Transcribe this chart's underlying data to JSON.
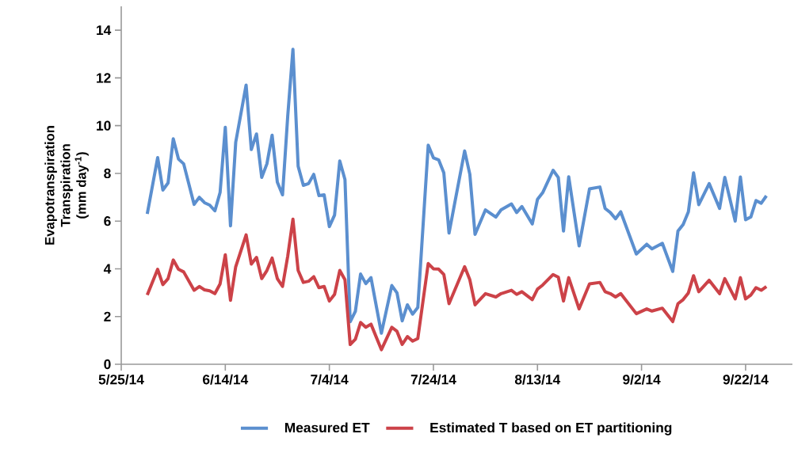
{
  "chart_data": {
    "type": "line",
    "ylabel": "Evapotranspiration\nTranspiration\n(mm day$^{-1}$)",
    "x": [
      "2014-05-30",
      "2014-06-01",
      "2014-06-02",
      "2014-06-03",
      "2014-06-04",
      "2014-06-05",
      "2014-06-06",
      "2014-06-08",
      "2014-06-09",
      "2014-06-10",
      "2014-06-11",
      "2014-06-12",
      "2014-06-13",
      "2014-06-14",
      "2014-06-15",
      "2014-06-16",
      "2014-06-18",
      "2014-06-19",
      "2014-06-20",
      "2014-06-21",
      "2014-06-22",
      "2014-06-23",
      "2014-06-24",
      "2014-06-25",
      "2014-06-26",
      "2014-06-27",
      "2014-06-28",
      "2014-06-29",
      "2014-06-30",
      "2014-07-01",
      "2014-07-02",
      "2014-07-03",
      "2014-07-04",
      "2014-07-05",
      "2014-07-06",
      "2014-07-07",
      "2014-07-08",
      "2014-07-09",
      "2014-07-10",
      "2014-07-11",
      "2014-07-12",
      "2014-07-14",
      "2014-07-16",
      "2014-07-17",
      "2014-07-18",
      "2014-07-19",
      "2014-07-20",
      "2014-07-21",
      "2014-07-23",
      "2014-07-24",
      "2014-07-25",
      "2014-07-26",
      "2014-07-27",
      "2014-07-30",
      "2014-07-31",
      "2014-08-01",
      "2014-08-03",
      "2014-08-05",
      "2014-08-06",
      "2014-08-08",
      "2014-08-09",
      "2014-08-10",
      "2014-08-12",
      "2014-08-13",
      "2014-08-14",
      "2014-08-16",
      "2014-08-17",
      "2014-08-18",
      "2014-08-19",
      "2014-08-21",
      "2014-08-23",
      "2014-08-25",
      "2014-08-26",
      "2014-08-27",
      "2014-08-28",
      "2014-08-29",
      "2014-09-01",
      "2014-09-03",
      "2014-09-04",
      "2014-09-06",
      "2014-09-08",
      "2014-09-09",
      "2014-09-10",
      "2014-09-11",
      "2014-09-12",
      "2014-09-13",
      "2014-09-15",
      "2014-09-17",
      "2014-09-18",
      "2014-09-20",
      "2014-09-21",
      "2014-09-22",
      "2014-09-23",
      "2014-09-24",
      "2014-09-25",
      "2014-09-26"
    ],
    "series": [
      {
        "name": "Measured ET",
        "color": "#5b8fcf",
        "values": [
          6.3,
          8.66,
          7.3,
          7.6,
          9.45,
          8.6,
          8.4,
          6.7,
          7.0,
          6.77,
          6.67,
          6.43,
          7.2,
          9.93,
          5.8,
          9.3,
          11.7,
          9.0,
          9.65,
          7.83,
          8.4,
          9.6,
          7.63,
          7.1,
          10.4,
          13.2,
          8.3,
          7.5,
          7.57,
          7.96,
          7.07,
          7.1,
          5.77,
          6.25,
          8.52,
          7.74,
          1.78,
          2.22,
          3.78,
          3.38,
          3.63,
          1.3,
          3.3,
          2.99,
          1.82,
          2.49,
          2.1,
          2.38,
          9.18,
          8.65,
          8.57,
          8.02,
          5.5,
          8.94,
          7.96,
          5.44,
          6.47,
          6.17,
          6.47,
          6.72,
          6.36,
          6.61,
          5.88,
          6.91,
          7.19,
          8.13,
          7.83,
          5.58,
          7.86,
          4.96,
          7.35,
          7.43,
          6.53,
          6.36,
          6.1,
          6.39,
          4.62,
          5.03,
          4.84,
          5.07,
          3.89,
          5.58,
          5.86,
          6.39,
          8.02,
          6.69,
          7.57,
          6.53,
          7.83,
          6.0,
          7.85,
          6.06,
          6.17,
          6.86,
          6.75,
          7.06
        ]
      },
      {
        "name": "Estimated T based on ET partitioning",
        "color": "#cc4248",
        "values": [
          2.9,
          3.98,
          3.34,
          3.59,
          4.37,
          3.98,
          3.87,
          3.1,
          3.26,
          3.12,
          3.08,
          2.96,
          3.37,
          4.59,
          2.68,
          4.09,
          5.42,
          4.2,
          4.48,
          3.59,
          3.93,
          4.45,
          3.59,
          3.26,
          4.53,
          6.08,
          3.93,
          3.43,
          3.48,
          3.67,
          3.21,
          3.26,
          2.65,
          2.93,
          3.93,
          3.54,
          0.83,
          1.05,
          1.75,
          1.55,
          1.68,
          0.61,
          1.55,
          1.38,
          0.83,
          1.16,
          0.97,
          1.08,
          4.22,
          4.0,
          3.99,
          3.76,
          2.54,
          4.09,
          3.54,
          2.49,
          2.96,
          2.82,
          2.96,
          3.1,
          2.93,
          3.04,
          2.71,
          3.15,
          3.32,
          3.76,
          3.65,
          2.65,
          3.63,
          2.32,
          3.37,
          3.43,
          3.04,
          2.96,
          2.82,
          2.96,
          2.12,
          2.32,
          2.23,
          2.35,
          1.79,
          2.54,
          2.71,
          2.99,
          3.71,
          3.04,
          3.52,
          2.96,
          3.59,
          2.74,
          3.63,
          2.74,
          2.9,
          3.21,
          3.1,
          3.26
        ]
      }
    ],
    "xlim": [
      "2014-05-25",
      "2014-10-01"
    ],
    "xticks": [
      {
        "value": "2014-05-25",
        "label": "5/25/14"
      },
      {
        "value": "2014-06-14",
        "label": "6/14/14"
      },
      {
        "value": "2014-07-04",
        "label": "7/4/14"
      },
      {
        "value": "2014-07-24",
        "label": "7/24/14"
      },
      {
        "value": "2014-08-13",
        "label": "8/13/14"
      },
      {
        "value": "2014-09-02",
        "label": "9/2/14"
      },
      {
        "value": "2014-09-22",
        "label": "9/22/14"
      }
    ],
    "ylim": [
      0,
      15
    ],
    "yticks": [
      0,
      2,
      4,
      6,
      8,
      10,
      12,
      14
    ],
    "legend": "bottom",
    "line_style": "solid",
    "marker": "none"
  }
}
